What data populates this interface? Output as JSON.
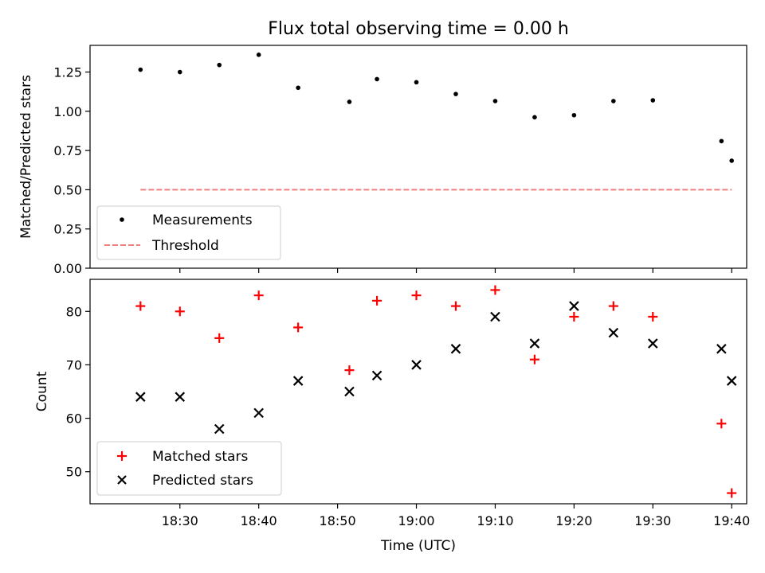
{
  "figure": {
    "title": "Flux total observing time = 0.00 h",
    "xlabel": "Time (UTC)",
    "x_tick_labels": [
      "18:30",
      "18:40",
      "18:50",
      "19:00",
      "19:10",
      "19:20",
      "19:30",
      "19:40"
    ]
  },
  "chart_data": [
    {
      "type": "scatter",
      "ylabel": "Matched/Predicted stars",
      "xlim": [
        "18:18.6",
        "19:41.9"
      ],
      "ylim": [
        0,
        1.42
      ],
      "y_ticks": [
        0.0,
        0.25,
        0.5,
        0.75,
        1.0,
        1.25
      ],
      "y_tick_labels": [
        "0.00",
        "0.25",
        "0.50",
        "0.75",
        "1.00",
        "1.25"
      ],
      "legend_position": "lower-left",
      "series": [
        {
          "name": "Measurements",
          "marker": "dot",
          "color": "#000000",
          "x": [
            "18:25",
            "18:30",
            "18:35",
            "18:40",
            "18:45",
            "18:51.5",
            "18:55",
            "19:00",
            "19:05",
            "19:10",
            "19:15",
            "19:20",
            "19:25",
            "19:30",
            "19:38.7",
            "19:40"
          ],
          "y": [
            1.265,
            1.25,
            1.295,
            1.36,
            1.15,
            1.06,
            1.205,
            1.185,
            1.11,
            1.065,
            0.962,
            0.975,
            1.065,
            1.07,
            0.81,
            0.685
          ]
        },
        {
          "name": "Threshold",
          "marker": "dashed-line",
          "color": "#f08080",
          "x": [
            "18:25",
            "19:40"
          ],
          "y": [
            0.5,
            0.5
          ]
        }
      ]
    },
    {
      "type": "scatter",
      "ylabel": "Count",
      "xlim": [
        "18:18.6",
        "19:41.9"
      ],
      "ylim": [
        44,
        86
      ],
      "y_ticks": [
        50,
        60,
        70,
        80
      ],
      "y_tick_labels": [
        "50",
        "60",
        "70",
        "80"
      ],
      "legend_position": "lower-left",
      "series": [
        {
          "name": "Matched stars",
          "marker": "plus",
          "color": "#ff0000",
          "x": [
            "18:25",
            "18:30",
            "18:35",
            "18:40",
            "18:45",
            "18:51.5",
            "18:55",
            "19:00",
            "19:05",
            "19:10",
            "19:15",
            "19:20",
            "19:25",
            "19:30",
            "19:38.7",
            "19:40"
          ],
          "y": [
            81,
            80,
            75,
            83,
            77,
            69,
            82,
            83,
            81,
            84,
            71,
            79,
            81,
            79,
            59,
            46
          ]
        },
        {
          "name": "Predicted stars",
          "marker": "x",
          "color": "#000000",
          "x": [
            "18:25",
            "18:30",
            "18:35",
            "18:40",
            "18:45",
            "18:51.5",
            "18:55",
            "19:00",
            "19:05",
            "19:10",
            "19:15",
            "19:20",
            "19:25",
            "19:30",
            "19:38.7",
            "19:40"
          ],
          "y": [
            64,
            64,
            58,
            61,
            67,
            65,
            68,
            70,
            73,
            79,
            74,
            81,
            76,
            74,
            73,
            67
          ]
        }
      ]
    }
  ]
}
